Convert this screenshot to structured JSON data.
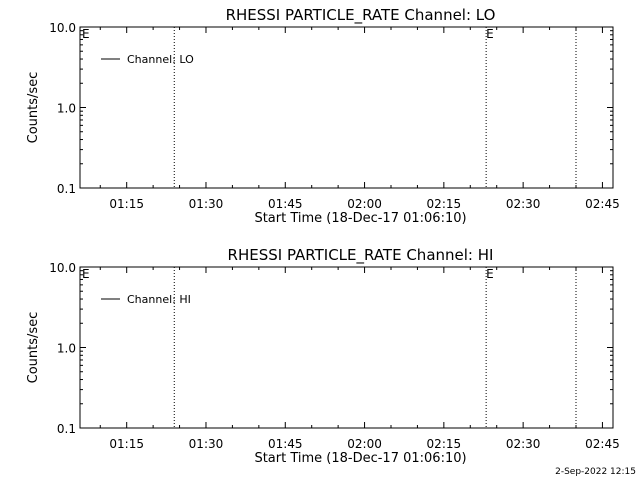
{
  "chart_data": [
    {
      "type": "line",
      "title": "RHESSI PARTICLE_RATE Channel: LO",
      "xlabel": "Start Time (18-Dec-17 01:06:10)",
      "ylabel": "Counts/sec",
      "y_scale": "log",
      "ylim": [
        0.1,
        10.0
      ],
      "yticks": [
        "0.1",
        "1.0",
        "10.0"
      ],
      "xlim": [
        "01:06:10",
        "02:47:00"
      ],
      "xticks": [
        "01:15",
        "01:30",
        "01:45",
        "02:00",
        "02:15",
        "02:30",
        "02:45"
      ],
      "vlines": [
        "01:24",
        "02:23",
        "02:40"
      ],
      "markers": [
        {
          "x": "01:06",
          "label": "E"
        },
        {
          "x": "02:23",
          "label": "E"
        }
      ],
      "series": [
        {
          "name": "Channel: LO",
          "x": [],
          "y": []
        }
      ],
      "legend": "top-left",
      "grid": false
    },
    {
      "type": "line",
      "title": "RHESSI PARTICLE_RATE Channel: HI",
      "xlabel": "Start Time (18-Dec-17 01:06:10)",
      "ylabel": "Counts/sec",
      "y_scale": "log",
      "ylim": [
        0.1,
        10.0
      ],
      "yticks": [
        "0.1",
        "1.0",
        "10.0"
      ],
      "xlim": [
        "01:06:10",
        "02:47:00"
      ],
      "xticks": [
        "01:15",
        "01:30",
        "01:45",
        "02:00",
        "02:15",
        "02:30",
        "02:45"
      ],
      "vlines": [
        "01:24",
        "02:23",
        "02:40"
      ],
      "markers": [
        {
          "x": "01:06",
          "label": "E"
        },
        {
          "x": "02:23",
          "label": "E"
        }
      ],
      "series": [
        {
          "name": "Channel: HI",
          "x": [],
          "y": []
        }
      ],
      "legend": "top-left",
      "grid": false
    }
  ],
  "footer": {
    "date_stamp": "2-Sep-2022 12:15"
  }
}
